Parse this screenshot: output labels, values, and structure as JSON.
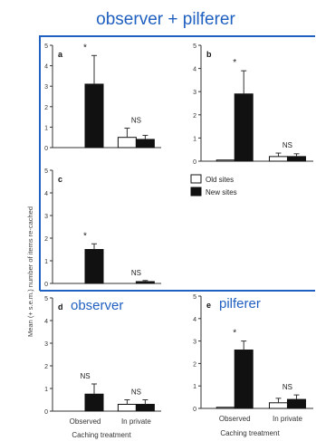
{
  "figure": {
    "header": "observer + pilferer",
    "ylabel": "Mean (+ s.e.m.) number of items re-cached",
    "xlabel": "Caching treatment",
    "accent_color": "#2060c0"
  },
  "chart_data": [
    {
      "type": "bar",
      "panel": "a",
      "title": "",
      "categories": [
        "",
        ""
      ],
      "ylim": [
        0,
        5
      ],
      "yticks": [
        0,
        1,
        2,
        3,
        4,
        5
      ],
      "series": [
        {
          "name": "Old sites",
          "values": [
            0.0,
            0.5
          ],
          "errors": [
            0.0,
            0.45
          ]
        },
        {
          "name": "New sites",
          "values": [
            3.1,
            0.4
          ],
          "errors": [
            1.4,
            0.2
          ]
        }
      ],
      "annotations": [
        "*",
        "NS"
      ]
    },
    {
      "type": "bar",
      "panel": "b",
      "title": "",
      "categories": [
        "",
        ""
      ],
      "ylim": [
        0,
        5
      ],
      "yticks": [
        0,
        1,
        2,
        3,
        4,
        5
      ],
      "series": [
        {
          "name": "Old sites",
          "values": [
            0.05,
            0.2
          ],
          "errors": [
            0.0,
            0.15
          ]
        },
        {
          "name": "New sites",
          "values": [
            2.9,
            0.2
          ],
          "errors": [
            1.0,
            0.12
          ]
        }
      ],
      "annotations": [
        "*",
        "NS"
      ],
      "legend": {
        "placement": "right",
        "entries": [
          "Old sites",
          "New sites"
        ]
      }
    },
    {
      "type": "bar",
      "panel": "c",
      "title": "",
      "categories": [
        "",
        ""
      ],
      "ylim": [
        0,
        5
      ],
      "yticks": [
        0,
        1,
        2,
        3,
        4,
        5
      ],
      "series": [
        {
          "name": "Old sites",
          "values": [
            0.0,
            0.0
          ],
          "errors": [
            0.0,
            0.0
          ]
        },
        {
          "name": "New sites",
          "values": [
            1.5,
            0.08
          ],
          "errors": [
            0.25,
            0.05
          ]
        }
      ],
      "annotations": [
        "*",
        "NS"
      ]
    },
    {
      "type": "bar",
      "panel": "d",
      "title": "observer",
      "categories": [
        "Observed",
        "In private"
      ],
      "ylim": [
        0,
        5
      ],
      "yticks": [
        0,
        1,
        2,
        3,
        4,
        5
      ],
      "series": [
        {
          "name": "Old sites",
          "values": [
            0.0,
            0.3
          ],
          "errors": [
            0.0,
            0.2
          ]
        },
        {
          "name": "New sites",
          "values": [
            0.75,
            0.3
          ],
          "errors": [
            0.45,
            0.2
          ]
        }
      ],
      "annotations": [
        "NS",
        "NS"
      ]
    },
    {
      "type": "bar",
      "panel": "e",
      "title": "pilferer",
      "categories": [
        "Observed",
        "In private"
      ],
      "ylim": [
        0,
        5
      ],
      "yticks": [
        0,
        1,
        2,
        3,
        4,
        5
      ],
      "series": [
        {
          "name": "Old sites",
          "values": [
            0.05,
            0.25
          ],
          "errors": [
            0.0,
            0.2
          ]
        },
        {
          "name": "New sites",
          "values": [
            2.6,
            0.4
          ],
          "errors": [
            0.4,
            0.2
          ]
        }
      ],
      "annotations": [
        "*",
        "NS"
      ]
    }
  ]
}
